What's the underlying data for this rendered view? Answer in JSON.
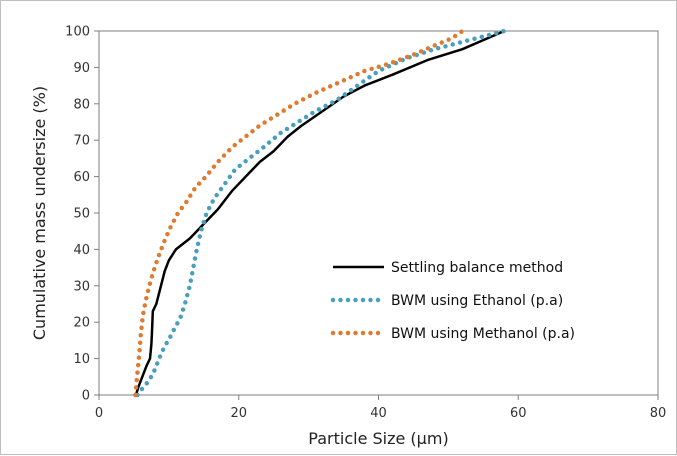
{
  "chart_data": {
    "type": "line",
    "title": "",
    "xlabel": "Particle Size (µm)",
    "ylabel": "Cumulative mass undersize (%)",
    "xlim": [
      0,
      80
    ],
    "ylim": [
      0,
      100
    ],
    "x_ticks": [
      "0",
      "20",
      "40",
      "60",
      "80"
    ],
    "y_ticks": [
      "0",
      "10",
      "20",
      "30",
      "40",
      "50",
      "60",
      "70",
      "80",
      "90",
      "100"
    ],
    "grid": false,
    "legend_position": "lower-right",
    "series": [
      {
        "name": "Settling balance method",
        "style": "solid",
        "color": "#000000",
        "points": [
          [
            5.3,
            0
          ],
          [
            5.6,
            2
          ],
          [
            6.0,
            4
          ],
          [
            6.4,
            6
          ],
          [
            6.8,
            8
          ],
          [
            7.3,
            10
          ],
          [
            7.5,
            14
          ],
          [
            7.6,
            18
          ],
          [
            7.7,
            23
          ],
          [
            8.2,
            25
          ],
          [
            8.6,
            28
          ],
          [
            9.0,
            31
          ],
          [
            9.4,
            34
          ],
          [
            10.0,
            37
          ],
          [
            11.0,
            40
          ],
          [
            13.0,
            43
          ],
          [
            15.0,
            47
          ],
          [
            17.0,
            51
          ],
          [
            19.0,
            56
          ],
          [
            21.0,
            60
          ],
          [
            23.0,
            64
          ],
          [
            25.0,
            67
          ],
          [
            27.0,
            71
          ],
          [
            29.0,
            74
          ],
          [
            32.0,
            78
          ],
          [
            35.0,
            82
          ],
          [
            38.0,
            85
          ],
          [
            42.0,
            88
          ],
          [
            47.0,
            92
          ],
          [
            52.0,
            95
          ],
          [
            55.0,
            97.5
          ],
          [
            58.0,
            100
          ]
        ]
      },
      {
        "name": "BWM using Ethanol (p.a)",
        "style": "dotted",
        "color": "#4a9fbf",
        "points": [
          [
            5.5,
            0
          ],
          [
            6.3,
            2
          ],
          [
            7.2,
            4
          ],
          [
            8.0,
            7
          ],
          [
            8.6,
            10
          ],
          [
            9.3,
            13
          ],
          [
            10.2,
            16
          ],
          [
            11.0,
            19
          ],
          [
            11.6,
            21
          ],
          [
            12.3,
            25
          ],
          [
            13.0,
            30
          ],
          [
            13.5,
            35
          ],
          [
            14.0,
            40
          ],
          [
            14.6,
            45
          ],
          [
            15.4,
            50
          ],
          [
            16.5,
            54
          ],
          [
            18.0,
            58
          ],
          [
            19.5,
            62
          ],
          [
            21.5,
            65
          ],
          [
            23.5,
            68
          ],
          [
            26.0,
            72
          ],
          [
            28.5,
            75
          ],
          [
            31.0,
            78
          ],
          [
            34.0,
            81
          ],
          [
            37.0,
            85
          ],
          [
            40.0,
            89
          ],
          [
            44.0,
            92.5
          ],
          [
            48.0,
            95
          ],
          [
            52.0,
            97
          ],
          [
            55.0,
            98.5
          ],
          [
            58.0,
            100
          ]
        ]
      },
      {
        "name": "BWM using Methanol (p.a)",
        "style": "dotted",
        "color": "#e07a30",
        "points": [
          [
            5.2,
            0
          ],
          [
            5.4,
            4
          ],
          [
            5.6,
            8
          ],
          [
            5.8,
            12
          ],
          [
            6.0,
            17
          ],
          [
            6.3,
            22
          ],
          [
            6.7,
            26
          ],
          [
            7.2,
            30
          ],
          [
            7.8,
            34
          ],
          [
            8.5,
            38
          ],
          [
            9.3,
            42
          ],
          [
            10.2,
            46
          ],
          [
            11.3,
            50
          ],
          [
            12.5,
            53
          ],
          [
            13.8,
            57
          ],
          [
            15.3,
            60
          ],
          [
            17.0,
            64
          ],
          [
            19.0,
            68
          ],
          [
            21.0,
            71
          ],
          [
            23.0,
            74
          ],
          [
            25.5,
            77
          ],
          [
            28.0,
            80
          ],
          [
            31.0,
            83
          ],
          [
            34.5,
            86
          ],
          [
            38.0,
            89
          ],
          [
            41.5,
            91
          ],
          [
            45.0,
            93.5
          ],
          [
            48.0,
            96
          ],
          [
            50.5,
            98
          ],
          [
            52.0,
            100
          ]
        ]
      }
    ]
  }
}
